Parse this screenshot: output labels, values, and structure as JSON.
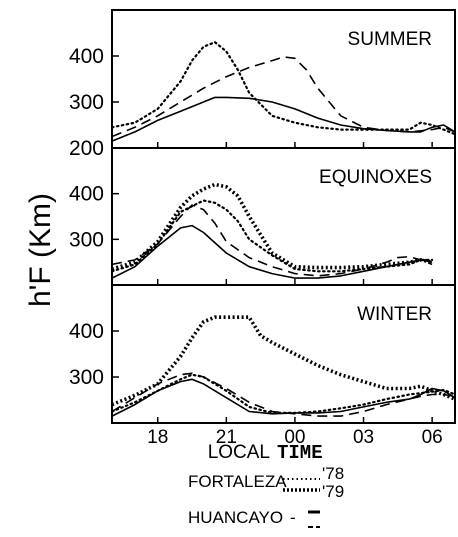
{
  "chart_data": {
    "type": "line",
    "ylabel": "h'F (Km)",
    "xlabel_parts": [
      "LOCAL",
      "TIME"
    ],
    "x_ticks": [
      "18",
      "21",
      "00",
      "03",
      "06"
    ],
    "x_range": [
      16,
      31
    ],
    "y_ticks": [
      "200",
      "300",
      "400"
    ],
    "ylim": [
      200,
      500
    ],
    "legend": {
      "fortaleza_label": "FORTALEZA",
      "fortaleza_years": [
        "'78",
        "'79"
      ],
      "huancayo_label": "HUANCAYO",
      "huancayo_dash": "-"
    },
    "panels": [
      {
        "title": "SUMMER",
        "series": [
          {
            "style": "dotted-78",
            "x": [
              16,
              17,
              18,
              19,
              19.5,
              20,
              20.5,
              21,
              21.5,
              22,
              23,
              24,
              25,
              26,
              27,
              28,
              29,
              29.5,
              30,
              31
            ],
            "y": [
              245,
              255,
              285,
              345,
              390,
              420,
              430,
              410,
              370,
              320,
              270,
              255,
              245,
              240,
              240,
              240,
              240,
              255,
              250,
              230
            ]
          },
          {
            "style": "solid",
            "x": [
              16,
              17,
              18,
              19,
              20,
              20.5,
              21,
              22,
              23,
              24,
              25,
              26,
              27,
              28,
              29,
              29.5,
              30,
              30.5,
              31
            ],
            "y": [
              215,
              235,
              260,
              280,
              300,
              310,
              310,
              308,
              300,
              285,
              265,
              250,
              242,
              238,
              235,
              235,
              245,
              250,
              235
            ]
          },
          {
            "style": "dashed",
            "x": [
              16,
              17,
              18,
              19,
              20,
              21,
              22,
              23,
              23.5,
              24,
              24.5,
              25,
              26,
              27,
              28,
              29,
              30,
              30.5,
              31
            ],
            "y": [
              225,
              245,
              270,
              300,
              330,
              355,
              375,
              390,
              398,
              395,
              370,
              330,
              270,
              245,
              238,
              235,
              240,
              245,
              235
            ]
          }
        ]
      },
      {
        "title": "EQUINOXES",
        "series": [
          {
            "style": "dotted-78",
            "x": [
              16,
              17,
              18,
              19,
              20,
              20.5,
              21,
              21.5,
              22,
              23,
              24,
              25,
              26,
              27,
              28,
              29,
              29.5,
              30
            ],
            "y": [
              230,
              245,
              290,
              360,
              385,
              380,
              365,
              340,
              300,
              265,
              235,
              230,
              230,
              235,
              240,
              245,
              255,
              255
            ]
          },
          {
            "style": "dotted-79",
            "x": [
              16,
              17,
              18,
              19,
              19.5,
              20,
              20.5,
              21,
              21.5,
              22,
              23,
              24,
              25,
              26,
              27,
              28,
              29,
              29.5,
              30
            ],
            "y": [
              235,
              250,
              295,
              370,
              395,
              410,
              420,
              415,
              395,
              350,
              270,
              240,
              238,
              238,
              240,
              245,
              250,
              255,
              250
            ]
          },
          {
            "style": "solid",
            "x": [
              16,
              17,
              18,
              19,
              19.5,
              20,
              21,
              22,
              23,
              24,
              25,
              26,
              27,
              28,
              29,
              29.5,
              30
            ],
            "y": [
              215,
              240,
              285,
              325,
              330,
              315,
              270,
              240,
              225,
              215,
              215,
              220,
              230,
              240,
              250,
              255,
              250
            ]
          },
          {
            "style": "dashed",
            "x": [
              16,
              17,
              18,
              19,
              19.5,
              20,
              20.5,
              21,
              22,
              23,
              24,
              25,
              26,
              27,
              28,
              28.5,
              29,
              29.5,
              30
            ],
            "y": [
              245,
              255,
              290,
              350,
              375,
              365,
              335,
              295,
              260,
              240,
              225,
              220,
              225,
              235,
              250,
              260,
              262,
              255,
              245
            ]
          }
        ]
      },
      {
        "title": "WINTER",
        "series": [
          {
            "style": "dotted-78",
            "x": [
              16,
              17,
              18,
              19,
              19.5,
              20,
              21,
              22,
              23,
              24,
              25,
              26,
              27,
              28,
              29,
              30,
              30.5,
              31
            ],
            "y": [
              225,
              245,
              270,
              295,
              305,
              300,
              270,
              235,
              222,
              222,
              225,
              232,
              240,
              252,
              262,
              268,
              272,
              262
            ]
          },
          {
            "style": "dotted-79",
            "x": [
              16,
              17,
              18,
              19,
              19.5,
              20,
              20.5,
              21,
              21.5,
              22,
              22.5,
              23,
              24,
              25,
              26,
              27,
              28,
              29,
              29.5,
              30,
              30.5,
              31
            ],
            "y": [
              240,
              260,
              285,
              345,
              385,
              420,
              430,
              430,
              430,
              430,
              390,
              375,
              350,
              325,
              305,
              290,
              275,
              275,
              280,
              270,
              262,
              252
            ]
          },
          {
            "style": "solid",
            "x": [
              16,
              17,
              18,
              19,
              19.5,
              20,
              21,
              22,
              23,
              24,
              25,
              26,
              27,
              28,
              29,
              29.5,
              30,
              30.5,
              31
            ],
            "y": [
              215,
              240,
              270,
              290,
              295,
              285,
              255,
              225,
              220,
              222,
              222,
              225,
              235,
              245,
              252,
              262,
              275,
              270,
              255
            ]
          },
          {
            "style": "dashed",
            "x": [
              16,
              17,
              18,
              19,
              19.5,
              20,
              21,
              22,
              23,
              24,
              25,
              26,
              27,
              28,
              29,
              29.5,
              30,
              30.5,
              31
            ],
            "y": [
              225,
              255,
              285,
              305,
              308,
              300,
              275,
              245,
              225,
              220,
              215,
              215,
              225,
              240,
              252,
              258,
              262,
              262,
              258
            ]
          }
        ]
      }
    ]
  }
}
